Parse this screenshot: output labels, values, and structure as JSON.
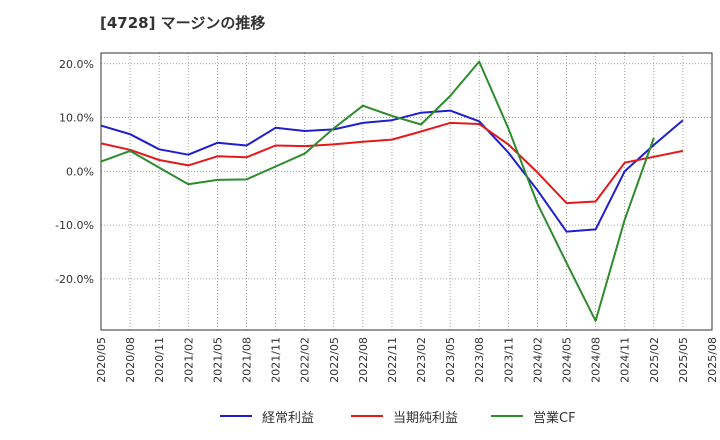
{
  "title": "[4728]  マージンの推移",
  "chart_data": {
    "type": "line",
    "x": [
      "2020/05",
      "2020/08",
      "2020/11",
      "2021/02",
      "2021/05",
      "2021/08",
      "2021/11",
      "2022/02",
      "2022/05",
      "2022/08",
      "2022/11",
      "2023/02",
      "2023/05",
      "2023/08",
      "2023/11",
      "2024/02",
      "2024/05",
      "2024/08",
      "2024/11",
      "2025/02",
      "2025/05",
      "2025/08"
    ],
    "ylim": [
      -29.5,
      22
    ],
    "yticks": [
      20,
      10,
      0,
      -10,
      -20
    ],
    "ytick_labels": [
      "20.0%",
      "10.0%",
      "0.0%",
      "-10.0%",
      "-20.0%"
    ],
    "grid": true,
    "legend_position": "bottom",
    "series": [
      {
        "name": "経常利益",
        "color": "#1f1fcc",
        "values": [
          8.5,
          6.9,
          4.1,
          3.1,
          5.3,
          4.8,
          8.1,
          7.5,
          7.8,
          9.0,
          9.5,
          10.9,
          11.3,
          9.3,
          3.5,
          -3.5,
          -11.2,
          -10.8,
          0.0,
          4.9,
          9.5,
          null
        ]
      },
      {
        "name": "当期純利益",
        "color": "#e31a1c",
        "values": [
          5.2,
          4.0,
          2.1,
          1.1,
          2.8,
          2.6,
          4.8,
          4.7,
          5.0,
          5.5,
          5.9,
          7.4,
          9.0,
          8.8,
          5.0,
          -0.2,
          -5.9,
          -5.6,
          1.6,
          2.7,
          3.8,
          null
        ]
      },
      {
        "name": "営業CF",
        "color": "#2e8b2e",
        "values": [
          1.8,
          3.8,
          0.7,
          -2.4,
          -1.6,
          -1.5,
          0.9,
          3.3,
          8.0,
          12.2,
          10.3,
          8.7,
          14.0,
          20.4,
          8.0,
          -6.0,
          -17.0,
          -27.8,
          -9.0,
          6.2,
          null,
          null
        ]
      }
    ]
  }
}
